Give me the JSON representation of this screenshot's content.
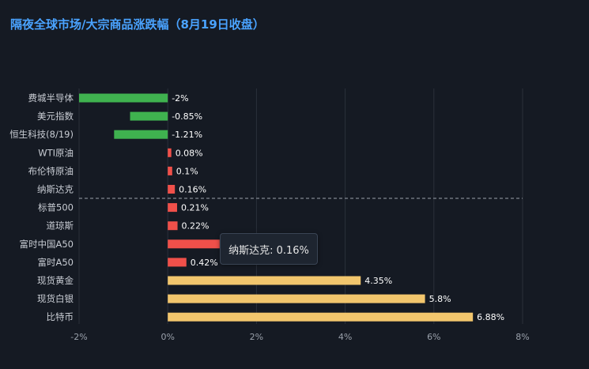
{
  "title": "隔夜全球市场/大宗商品涨跌幅（8月19日收盘）",
  "tooltip": {
    "text": "纳斯达克: 0.16%"
  },
  "colors": {
    "background": "#151a23",
    "title": "#4aa3ff",
    "negative": "#3fb24f",
    "positive": "#f0504a",
    "highlight": "#f2c66d",
    "grid": "#2a303a",
    "divider": "#9aa1ab"
  },
  "chart_data": {
    "type": "bar",
    "orientation": "horizontal",
    "categories": [
      "费城半导体",
      "美元指数",
      "恒生科技(8/19)",
      "WTI原油",
      "布伦特原油",
      "纳斯达克",
      "标普500",
      "道琼斯",
      "富时中国A50",
      "富时A50",
      "现货黄金",
      "现货白银",
      "比特币"
    ],
    "values": [
      -2,
      -0.85,
      -1.21,
      0.08,
      0.1,
      0.16,
      0.21,
      0.22,
      1.17,
      0.42,
      4.35,
      5.8,
      6.88
    ],
    "value_labels": [
      "-2%",
      "-0.85%",
      "-1.21%",
      "0.08%",
      "0.1%",
      "0.16%",
      "0.21%",
      "0.22%",
      "",
      "0.42%",
      "4.35%",
      "5.8%",
      "6.88%"
    ],
    "bar_colors": [
      "#3fb24f",
      "#3fb24f",
      "#3fb24f",
      "#f0504a",
      "#f0504a",
      "#f0504a",
      "#f0504a",
      "#f0504a",
      "#f0504a",
      "#f0504a",
      "#f2c66d",
      "#f2c66d",
      "#f2c66d"
    ],
    "xlim": [
      -2,
      8
    ],
    "xticks": [
      -2,
      0,
      2,
      4,
      6,
      8
    ],
    "xtick_labels": [
      "-2%",
      "0%",
      "2%",
      "4%",
      "6%",
      "8%"
    ],
    "divider_after_category": "纳斯达克",
    "grid": true
  }
}
